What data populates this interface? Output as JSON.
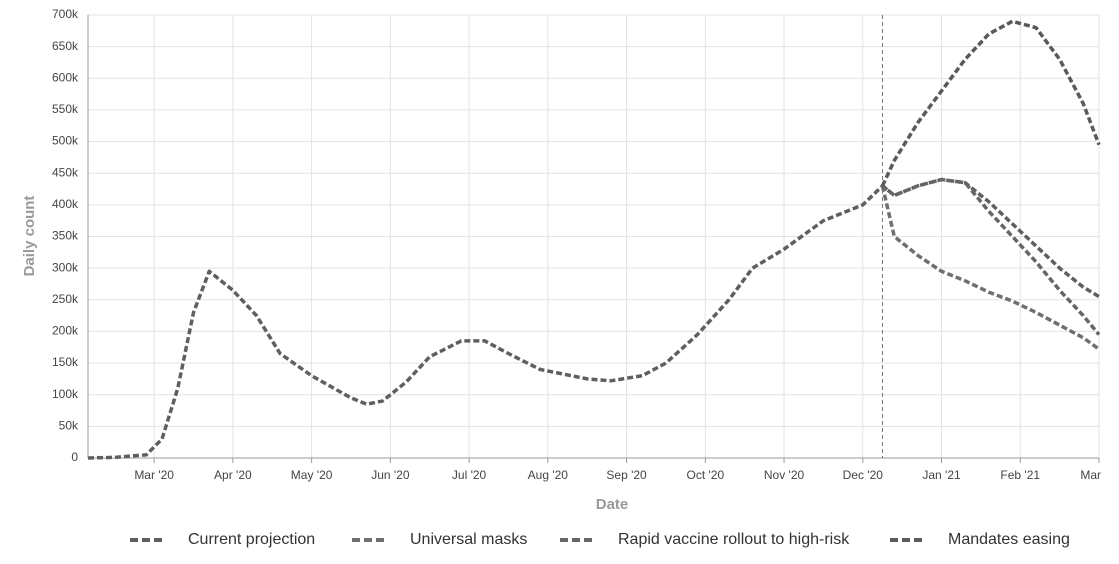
{
  "chart_data": {
    "type": "line",
    "xlabel": "Date",
    "ylabel": "Daily count",
    "x": [
      2.16,
      2.5,
      2.9,
      3.1,
      3.3,
      3.5,
      3.7,
      4.0,
      4.3,
      4.6,
      5.0,
      5.5,
      5.7,
      5.9,
      6.2,
      6.5,
      6.9,
      7.2,
      7.5,
      7.9,
      8.5,
      8.8,
      9.2,
      9.5,
      9.9,
      10.3,
      10.6,
      11.0,
      11.5,
      12.0,
      12.25,
      12.4,
      12.7,
      13.0,
      13.3,
      13.6,
      13.9,
      14.2,
      14.5,
      14.8,
      15.0
    ],
    "xlim": [
      2.16,
      15.0
    ],
    "xticks": [
      {
        "value": 3,
        "label": "Mar '20"
      },
      {
        "value": 4,
        "label": "Apr '20"
      },
      {
        "value": 5,
        "label": "May '20"
      },
      {
        "value": 6,
        "label": "Jun '20"
      },
      {
        "value": 7,
        "label": "Jul '20"
      },
      {
        "value": 8,
        "label": "Aug '20"
      },
      {
        "value": 9,
        "label": "Sep '20"
      },
      {
        "value": 10,
        "label": "Oct '20"
      },
      {
        "value": 11,
        "label": "Nov '20"
      },
      {
        "value": 12,
        "label": "Dec '20"
      },
      {
        "value": 13,
        "label": "Jan '21"
      },
      {
        "value": 14,
        "label": "Feb '21"
      },
      {
        "value": 15,
        "label": "Mar"
      }
    ],
    "ylim": [
      0,
      700000
    ],
    "yticks": [
      0,
      {
        "value": 50000,
        "label": "50k"
      },
      {
        "value": 100000,
        "label": "100k"
      },
      {
        "value": 150000,
        "label": "150k"
      },
      {
        "value": 200000,
        "label": "200k"
      },
      {
        "value": 250000,
        "label": "250k"
      },
      {
        "value": 300000,
        "label": "300k"
      },
      {
        "value": 350000,
        "label": "350k"
      },
      {
        "value": 400000,
        "label": "400k"
      },
      {
        "value": 450000,
        "label": "450k"
      },
      {
        "value": 500000,
        "label": "500k"
      },
      {
        "value": 550000,
        "label": "550k"
      },
      {
        "value": 600000,
        "label": "600k"
      },
      {
        "value": 650000,
        "label": "650k"
      },
      {
        "value": 700000,
        "label": "700k"
      }
    ],
    "grid": true,
    "vline": 12.25,
    "legend": "bottom",
    "series": [
      {
        "name": "Current projection",
        "color": "#5f5f5f",
        "values": [
          0,
          1000,
          5000,
          30000,
          110000,
          230000,
          295000,
          265000,
          225000,
          165000,
          130000,
          95000,
          85000,
          90000,
          120000,
          160000,
          185000,
          185000,
          165000,
          140000,
          125000,
          122000,
          130000,
          150000,
          195000,
          250000,
          300000,
          330000,
          375000,
          400000,
          430000,
          415000,
          430000,
          440000,
          435000,
          405000,
          370000,
          335000,
          300000,
          270000,
          255000
        ]
      },
      {
        "name": "Universal masks",
        "color": "#6f6f6f",
        "values": [
          null,
          null,
          null,
          null,
          null,
          null,
          null,
          null,
          null,
          null,
          null,
          null,
          null,
          null,
          null,
          null,
          null,
          null,
          null,
          null,
          null,
          null,
          null,
          null,
          null,
          null,
          null,
          null,
          null,
          null,
          430000,
          350000,
          320000,
          295000,
          280000,
          262000,
          248000,
          230000,
          210000,
          190000,
          172000
        ]
      },
      {
        "name": "Rapid vaccine rollout to high-risk",
        "color": "#666666",
        "values": [
          null,
          null,
          null,
          null,
          null,
          null,
          null,
          null,
          null,
          null,
          null,
          null,
          null,
          null,
          null,
          null,
          null,
          null,
          null,
          null,
          null,
          null,
          null,
          null,
          null,
          null,
          null,
          null,
          null,
          null,
          430000,
          415000,
          430000,
          440000,
          435000,
          390000,
          350000,
          310000,
          265000,
          225000,
          195000
        ]
      },
      {
        "name": "Mandates easing",
        "color": "#5a5a5a",
        "values": [
          null,
          null,
          null,
          null,
          null,
          null,
          null,
          null,
          null,
          null,
          null,
          null,
          null,
          null,
          null,
          null,
          null,
          null,
          null,
          null,
          null,
          null,
          null,
          null,
          null,
          null,
          null,
          null,
          null,
          null,
          430000,
          470000,
          530000,
          580000,
          630000,
          670000,
          690000,
          680000,
          630000,
          560000,
          495000
        ]
      }
    ]
  }
}
